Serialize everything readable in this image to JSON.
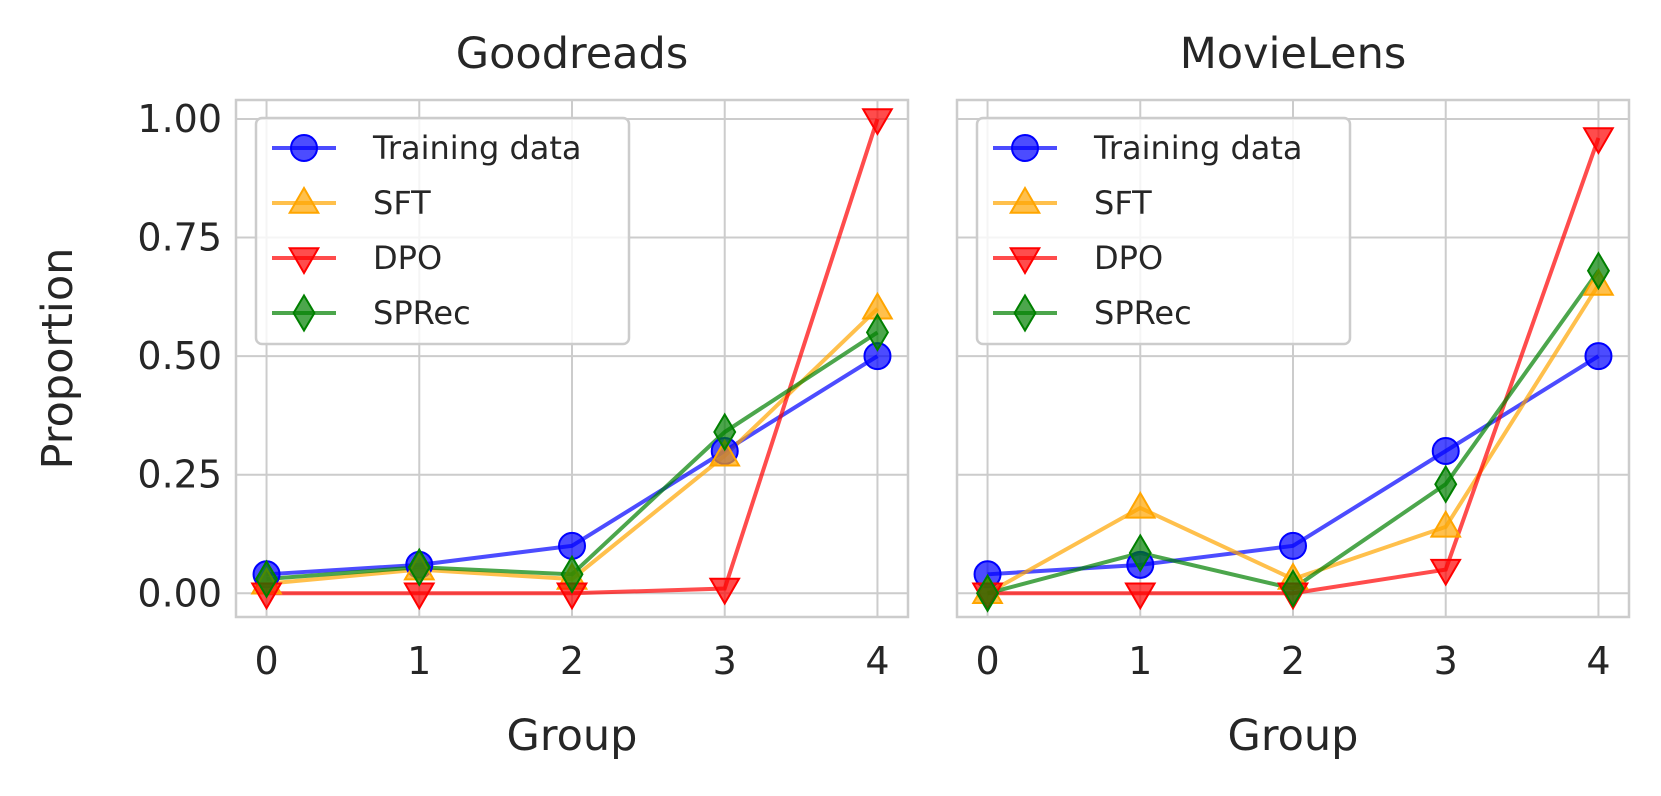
{
  "chart_data": [
    {
      "type": "line",
      "title": "Goodreads",
      "xlabel": "Group",
      "ylabel": "Proportion",
      "x": [
        0,
        1,
        2,
        3,
        4
      ],
      "xlim": [
        -0.2,
        4.2
      ],
      "ylim": [
        -0.05,
        1.04
      ],
      "yticks": [
        "0.00",
        "0.25",
        "0.50",
        "0.75",
        "1.00"
      ],
      "xticks": [
        "0",
        "1",
        "2",
        "3",
        "4"
      ],
      "grid": true,
      "legend": "top-left",
      "series": [
        {
          "name": "Training data",
          "color": "#0000ff",
          "marker": "circle",
          "values": [
            0.04,
            0.06,
            0.1,
            0.3,
            0.5
          ]
        },
        {
          "name": "SFT",
          "color": "#ffa500",
          "marker": "triangle-up",
          "values": [
            0.02,
            0.05,
            0.03,
            0.29,
            0.6
          ]
        },
        {
          "name": "DPO",
          "color": "#ff0000",
          "marker": "triangle-down",
          "values": [
            0.0,
            0.0,
            0.0,
            0.01,
            1.0
          ]
        },
        {
          "name": "SPRec",
          "color": "#008000",
          "marker": "diamond",
          "values": [
            0.03,
            0.055,
            0.04,
            0.34,
            0.55
          ]
        }
      ]
    },
    {
      "type": "line",
      "title": "MovieLens",
      "xlabel": "Group",
      "ylabel": "",
      "x": [
        0,
        1,
        2,
        3,
        4
      ],
      "xlim": [
        -0.2,
        4.2
      ],
      "ylim": [
        -0.05,
        1.04
      ],
      "yticks": [],
      "xticks": [
        "0",
        "1",
        "2",
        "3",
        "4"
      ],
      "grid": true,
      "legend": "top-left",
      "series": [
        {
          "name": "Training data",
          "color": "#0000ff",
          "marker": "circle",
          "values": [
            0.04,
            0.06,
            0.1,
            0.3,
            0.5
          ]
        },
        {
          "name": "SFT",
          "color": "#ffa500",
          "marker": "triangle-up",
          "values": [
            0.0,
            0.18,
            0.03,
            0.14,
            0.65
          ]
        },
        {
          "name": "DPO",
          "color": "#ff0000",
          "marker": "triangle-down",
          "values": [
            0.0,
            0.0,
            0.0,
            0.05,
            0.96
          ]
        },
        {
          "name": "SPRec",
          "color": "#008000",
          "marker": "diamond",
          "values": [
            0.0,
            0.085,
            0.01,
            0.23,
            0.68
          ]
        }
      ]
    }
  ]
}
